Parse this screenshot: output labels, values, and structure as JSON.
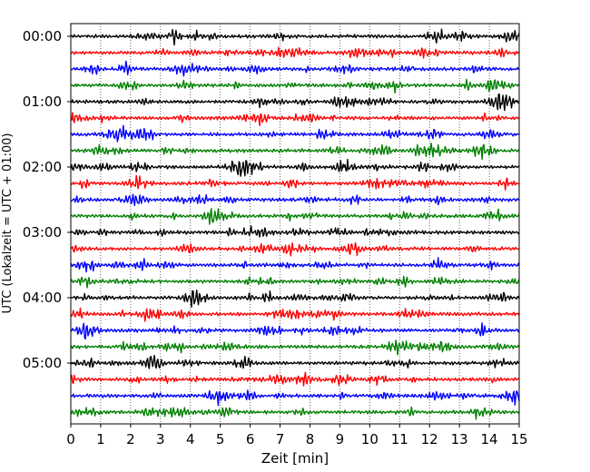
{
  "chart_data": {
    "type": "line",
    "title": "",
    "xlabel": "Zeit  [min]",
    "ylabel": "UTC (Lokalzeit = UTC + 01:00)",
    "xlim": [
      0,
      15
    ],
    "x_ticks": [
      "0",
      "1",
      "2",
      "3",
      "4",
      "5",
      "6",
      "7",
      "8",
      "9",
      "10",
      "11",
      "12",
      "13",
      "14",
      "15"
    ],
    "y_ticks": [
      "00:00",
      "01:00",
      "02:00",
      "03:00",
      "04:00",
      "05:00"
    ],
    "grid": "vertical dotted at each minute",
    "trace_interval_min": 15,
    "trace_count": 24,
    "first_trace": "00:00",
    "color_cycle": [
      "#000000",
      "#ff0000",
      "#0000ff",
      "#008000"
    ]
  }
}
